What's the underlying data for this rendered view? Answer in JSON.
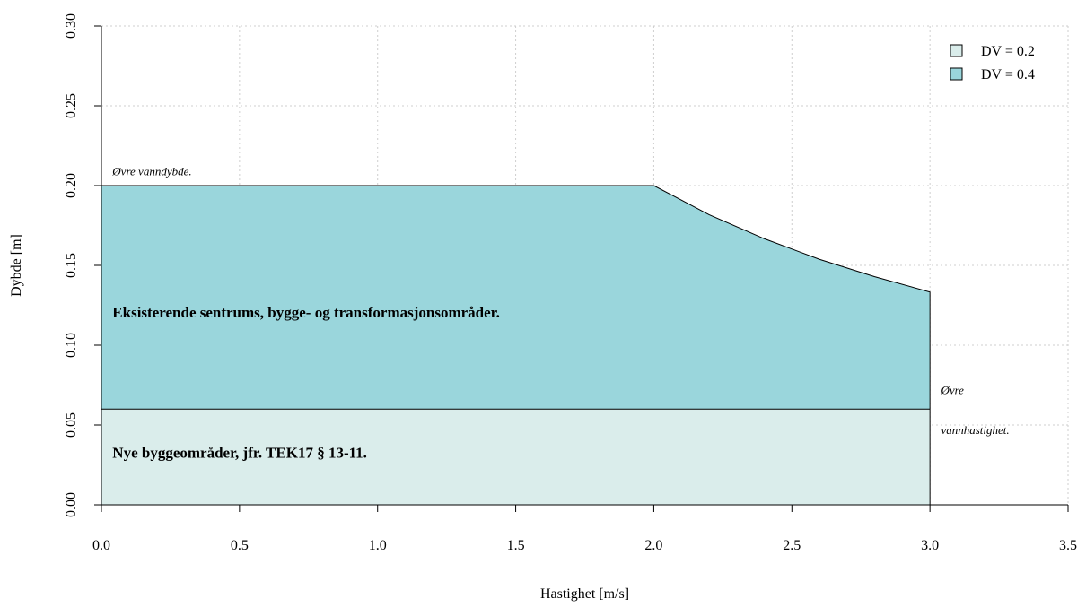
{
  "chart_data": {
    "type": "area",
    "xlabel": "Hastighet [m/s]",
    "ylabel": "Dybde [m]",
    "xlim": [
      0,
      3.5
    ],
    "ylim": [
      0,
      0.3
    ],
    "xticks": [
      0.0,
      0.5,
      1.0,
      1.5,
      2.0,
      2.5,
      3.0,
      3.5
    ],
    "xtick_labels": [
      "0.0",
      "0.5",
      "1.0",
      "1.5",
      "2.0",
      "2.5",
      "3.0",
      "3.5"
    ],
    "yticks": [
      0.0,
      0.05,
      0.1,
      0.15,
      0.2,
      0.25,
      0.3
    ],
    "ytick_labels": [
      "0.00",
      "0.05",
      "0.10",
      "0.15",
      "0.20",
      "0.25",
      "0.30"
    ],
    "grid": true,
    "legend_position": "top-right",
    "series": [
      {
        "name": "DV = 0.2",
        "color": "#daedeb",
        "points": [
          [
            0.0,
            0.06
          ],
          [
            3.0,
            0.06
          ]
        ]
      },
      {
        "name": "DV = 0.4",
        "color": "#9ad6dc",
        "points": [
          [
            0.0,
            0.2
          ],
          [
            2.0,
            0.2
          ],
          [
            2.2,
            0.1818
          ],
          [
            2.4,
            0.1667
          ],
          [
            2.6,
            0.1538
          ],
          [
            2.8,
            0.1429
          ],
          [
            3.0,
            0.1333
          ]
        ]
      }
    ],
    "annotations": [
      {
        "id": "ovre-vanndybde",
        "text": "Øvre vanndybde.",
        "x": 0.04,
        "y": 0.2065,
        "style": "italic"
      },
      {
        "id": "eksisterende",
        "text": "Eksisterende sentrums, bygge- og transformasjonsområder.",
        "x": 0.04,
        "y": 0.1175,
        "style": "bold"
      },
      {
        "id": "nye-bygg",
        "text": "Nye byggeområder, jfr. TEK17 § 13-11.",
        "x": 0.04,
        "y": 0.0295,
        "style": "bold"
      },
      {
        "id": "ovre-1",
        "text": "Øvre",
        "x": 3.04,
        "y": 0.0695,
        "style": "italic"
      },
      {
        "id": "ovre-2",
        "text": "vannhastighet.",
        "x": 3.04,
        "y": 0.0445,
        "style": "italic"
      }
    ]
  }
}
